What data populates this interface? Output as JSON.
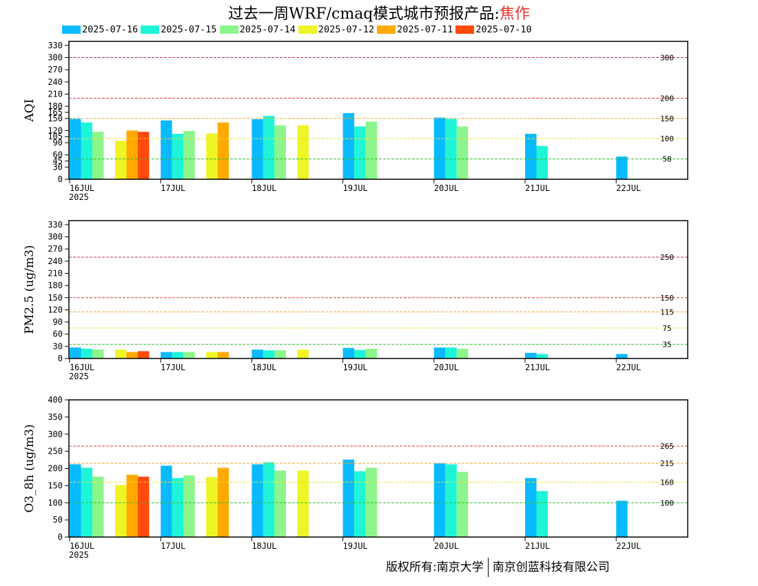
{
  "title": {
    "main": "过去一周WRF/cmaq模式城市预报产品",
    "sep": ":",
    "city": "焦作"
  },
  "footer": {
    "left": "版权所有:南京大学",
    "right": "南京创蓝科技有限公司"
  },
  "colors": {
    "2025-07-16": "#0abaff",
    "2025-07-15": "#1ef5d8",
    "2025-07-14": "#8cf58c",
    "2025-07-12": "#eef526",
    "2025-07-11": "#ffaa00",
    "2025-07-10": "#ff4a0a"
  },
  "chart_data": [
    {
      "type": "bar",
      "ylabel": "AQI",
      "ylim": [
        0,
        340
      ],
      "yticks": [
        0,
        30,
        45,
        60,
        90,
        105,
        120,
        150,
        165,
        180,
        210,
        240,
        270,
        300,
        330
      ],
      "x_ticks": [
        "16JUL",
        "17JUL",
        "18JUL",
        "19JUL",
        "20JUL",
        "21JUL",
        "22JUL"
      ],
      "x_year": "2025",
      "thresholds": [
        {
          "value": 300,
          "label": "300",
          "color": "#c0306a"
        },
        {
          "value": 200,
          "label": "200",
          "color": "#e23a3a"
        },
        {
          "value": 150,
          "label": "150",
          "color": "#f0a830"
        },
        {
          "value": 100,
          "label": "100",
          "color": "#f0e040"
        },
        {
          "value": 50,
          "label": "50",
          "color": "#30c030"
        }
      ],
      "series": [
        {
          "name": "2025-07-16",
          "values": [
            149,
            145,
            148,
            163,
            152,
            112,
            56
          ]
        },
        {
          "name": "2025-07-15",
          "values": [
            140,
            112,
            156,
            130,
            149,
            82,
            null
          ]
        },
        {
          "name": "2025-07-14",
          "values": [
            117,
            119,
            133,
            142,
            130,
            null,
            null
          ]
        },
        {
          "name": "2025-07-12",
          "values": [
            95,
            113,
            133,
            null,
            null,
            null,
            null
          ]
        },
        {
          "name": "2025-07-11",
          "values": [
            120,
            140,
            null,
            null,
            null,
            null,
            null
          ]
        },
        {
          "name": "2025-07-10",
          "values": [
            117,
            null,
            null,
            null,
            null,
            null,
            null
          ]
        }
      ]
    },
    {
      "type": "bar",
      "ylabel": "PM2.5 (ug/m3)",
      "ylim": [
        0,
        340
      ],
      "yticks": [
        0,
        30,
        60,
        90,
        120,
        150,
        180,
        210,
        240,
        270,
        300,
        330
      ],
      "x_ticks": [
        "16JUL",
        "17JUL",
        "18JUL",
        "19JUL",
        "20JUL",
        "21JUL",
        "22JUL"
      ],
      "x_year": "2025",
      "thresholds": [
        {
          "value": 250,
          "label": "250",
          "color": "#c0306a"
        },
        {
          "value": 150,
          "label": "150",
          "color": "#e23a3a"
        },
        {
          "value": 115,
          "label": "115",
          "color": "#f0a830"
        },
        {
          "value": 75,
          "label": "75",
          "color": "#f0e040"
        },
        {
          "value": 35,
          "label": "35",
          "color": "#30c030"
        }
      ],
      "series": [
        {
          "name": "2025-07-16",
          "values": [
            27,
            16,
            22,
            26,
            27,
            14,
            11
          ]
        },
        {
          "name": "2025-07-15",
          "values": [
            24,
            16,
            20,
            21,
            27,
            11,
            null
          ]
        },
        {
          "name": "2025-07-14",
          "values": [
            22,
            16,
            20,
            24,
            24,
            null,
            null
          ]
        },
        {
          "name": "2025-07-12",
          "values": [
            22,
            16,
            22,
            null,
            null,
            null,
            null
          ]
        },
        {
          "name": "2025-07-11",
          "values": [
            16,
            16,
            null,
            null,
            null,
            null,
            null
          ]
        },
        {
          "name": "2025-07-10",
          "values": [
            18,
            null,
            null,
            null,
            null,
            null,
            null
          ]
        }
      ]
    },
    {
      "type": "bar",
      "ylabel": "O3_8h (ug/m3)",
      "ylim": [
        0,
        400
      ],
      "yticks": [
        0,
        50,
        100,
        150,
        200,
        250,
        300,
        350,
        400
      ],
      "x_ticks": [
        "16JUL",
        "17JUL",
        "18JUL",
        "19JUL",
        "20JUL",
        "21JUL",
        "22JUL"
      ],
      "x_year": "2025",
      "thresholds": [
        {
          "value": 265,
          "label": "265",
          "color": "#e23a3a"
        },
        {
          "value": 215,
          "label": "215",
          "color": "#f0a830"
        },
        {
          "value": 160,
          "label": "160",
          "color": "#f0e040"
        },
        {
          "value": 100,
          "label": "100",
          "color": "#30c030"
        }
      ],
      "series": [
        {
          "name": "2025-07-16",
          "values": [
            212,
            208,
            212,
            226,
            215,
            172,
            106
          ]
        },
        {
          "name": "2025-07-15",
          "values": [
            202,
            172,
            218,
            192,
            212,
            134,
            null
          ]
        },
        {
          "name": "2025-07-14",
          "values": [
            176,
            180,
            194,
            202,
            190,
            null,
            null
          ]
        },
        {
          "name": "2025-07-12",
          "values": [
            152,
            175,
            194,
            null,
            null,
            null,
            null
          ]
        },
        {
          "name": "2025-07-11",
          "values": [
            182,
            202,
            null,
            null,
            null,
            null,
            null
          ]
        },
        {
          "name": "2025-07-10",
          "values": [
            176,
            null,
            null,
            null,
            null,
            null,
            null
          ]
        }
      ]
    }
  ]
}
